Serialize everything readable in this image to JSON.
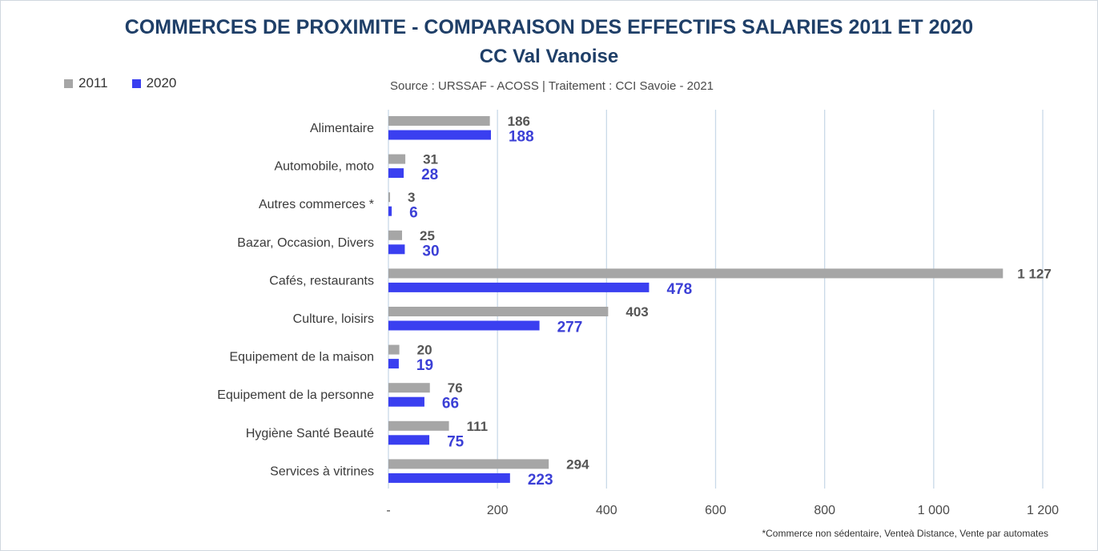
{
  "chart_data": {
    "type": "bar",
    "orientation": "horizontal",
    "title": "COMMERCES DE PROXIMITE - COMPARAISON DES EFFECTIFS SALARIES 2011 ET 2020",
    "subtitle": "CC Val Vanoise",
    "source": "Source  : URSSAF - ACOSS  |  Traitement : CCI Savoie - 2021",
    "footnote": "*Commerce non sédentaire, Venteà Distance, Vente par automates",
    "legend_position": "top-left",
    "categories": [
      "Alimentaire",
      "Automobile, moto",
      "Autres commerces *",
      "Bazar, Occasion, Divers",
      "Cafés, restaurants",
      "Culture, loisirs",
      "Equipement de la maison",
      "Equipement de la personne",
      "Hygiène Santé Beauté",
      "Services à vitrines"
    ],
    "series": [
      {
        "name": "2011",
        "color": "#a6a6a6",
        "values": [
          186,
          31,
          3,
          25,
          1127,
          403,
          20,
          76,
          111,
          294
        ],
        "labels": [
          "186",
          "31",
          "3",
          "25",
          "1 127",
          "403",
          "20",
          "76",
          "111",
          "294"
        ]
      },
      {
        "name": "2020",
        "color": "#3a3ff0",
        "values": [
          188,
          28,
          6,
          30,
          478,
          277,
          19,
          66,
          75,
          223
        ],
        "labels": [
          "188",
          "28",
          "6",
          "30",
          "478",
          "277",
          "19",
          "66",
          "75",
          "223"
        ]
      }
    ],
    "xlim": [
      0,
      1200
    ],
    "x_ticks": [
      0,
      200,
      400,
      600,
      800,
      1000,
      1200
    ],
    "x_tick_labels": [
      "-",
      "200",
      "400",
      "600",
      "800",
      "1 000",
      "1 200"
    ],
    "grid": true
  }
}
